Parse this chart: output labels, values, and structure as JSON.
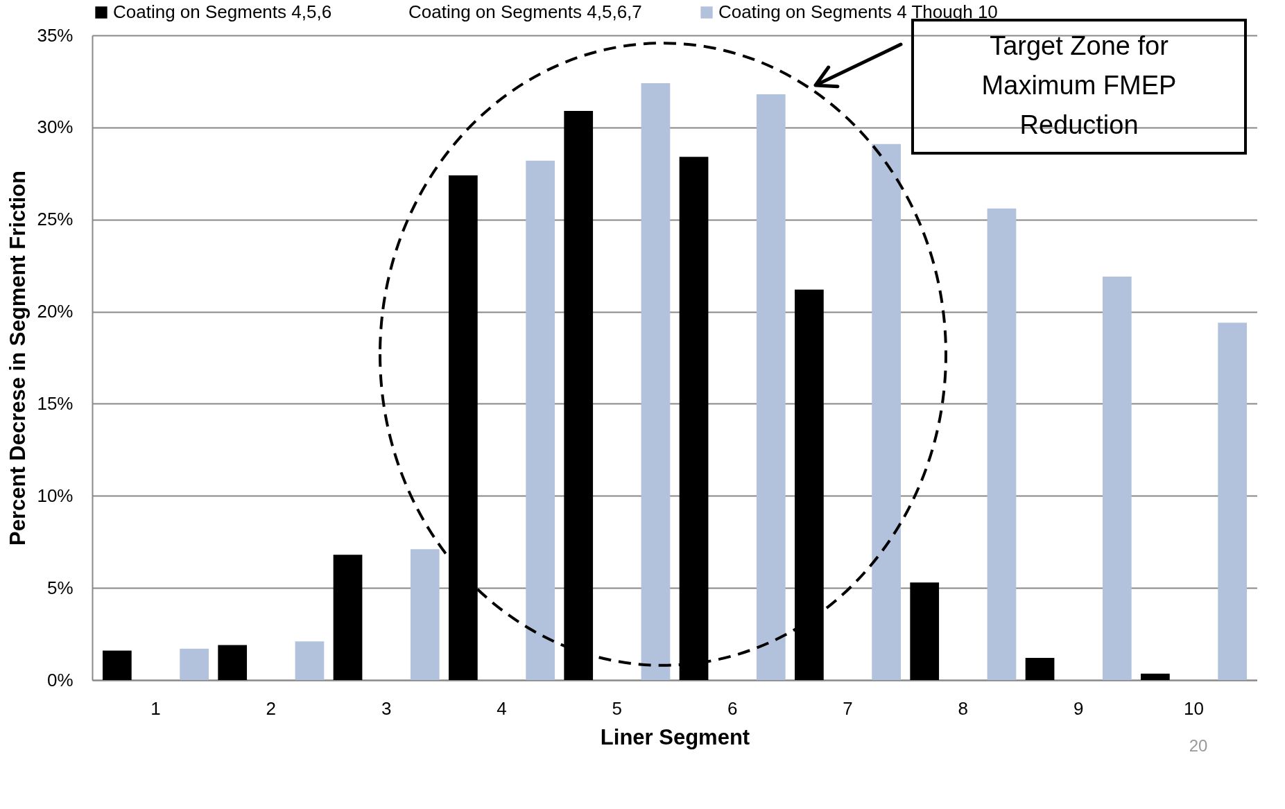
{
  "chart_data": {
    "type": "bar",
    "xlabel": "Liner Segment",
    "ylabel": "Percent Decrese in Segment Friction",
    "categories": [
      "1",
      "2",
      "3",
      "4",
      "5",
      "6",
      "7",
      "8",
      "9",
      "10"
    ],
    "series": [
      {
        "name": "Coating on Segments 4,5,6",
        "color": "#000000",
        "values": [
          1.6,
          1.9,
          6.8,
          27.4,
          30.9,
          28.4,
          21.2,
          5.3,
          1.2,
          0.35
        ]
      },
      {
        "name": "Coating on Segments 4,5,6,7",
        "values": [
          null,
          null,
          null,
          null,
          null,
          null,
          null,
          null,
          null,
          null
        ]
      },
      {
        "name": "Coating on Segments 4 Though 10",
        "color": "#b3c2dc",
        "values": [
          1.7,
          2.1,
          7.1,
          28.2,
          32.4,
          31.8,
          29.1,
          25.6,
          21.9,
          19.4
        ]
      }
    ],
    "ylim": [
      0,
      35
    ],
    "yticks": [
      {
        "value": 0,
        "label": "0%"
      },
      {
        "value": 5,
        "label": "5%"
      },
      {
        "value": 10,
        "label": "10%"
      },
      {
        "value": 15,
        "label": "15%"
      },
      {
        "value": 20,
        "label": "20%"
      },
      {
        "value": 25,
        "label": "25%"
      },
      {
        "value": 30,
        "label": "30%"
      },
      {
        "value": 35,
        "label": "35%"
      }
    ],
    "grid": "y",
    "legend": "top",
    "annotations": [
      "Target Zone for\nMaximum FMEP\nReduction",
      "20"
    ]
  }
}
